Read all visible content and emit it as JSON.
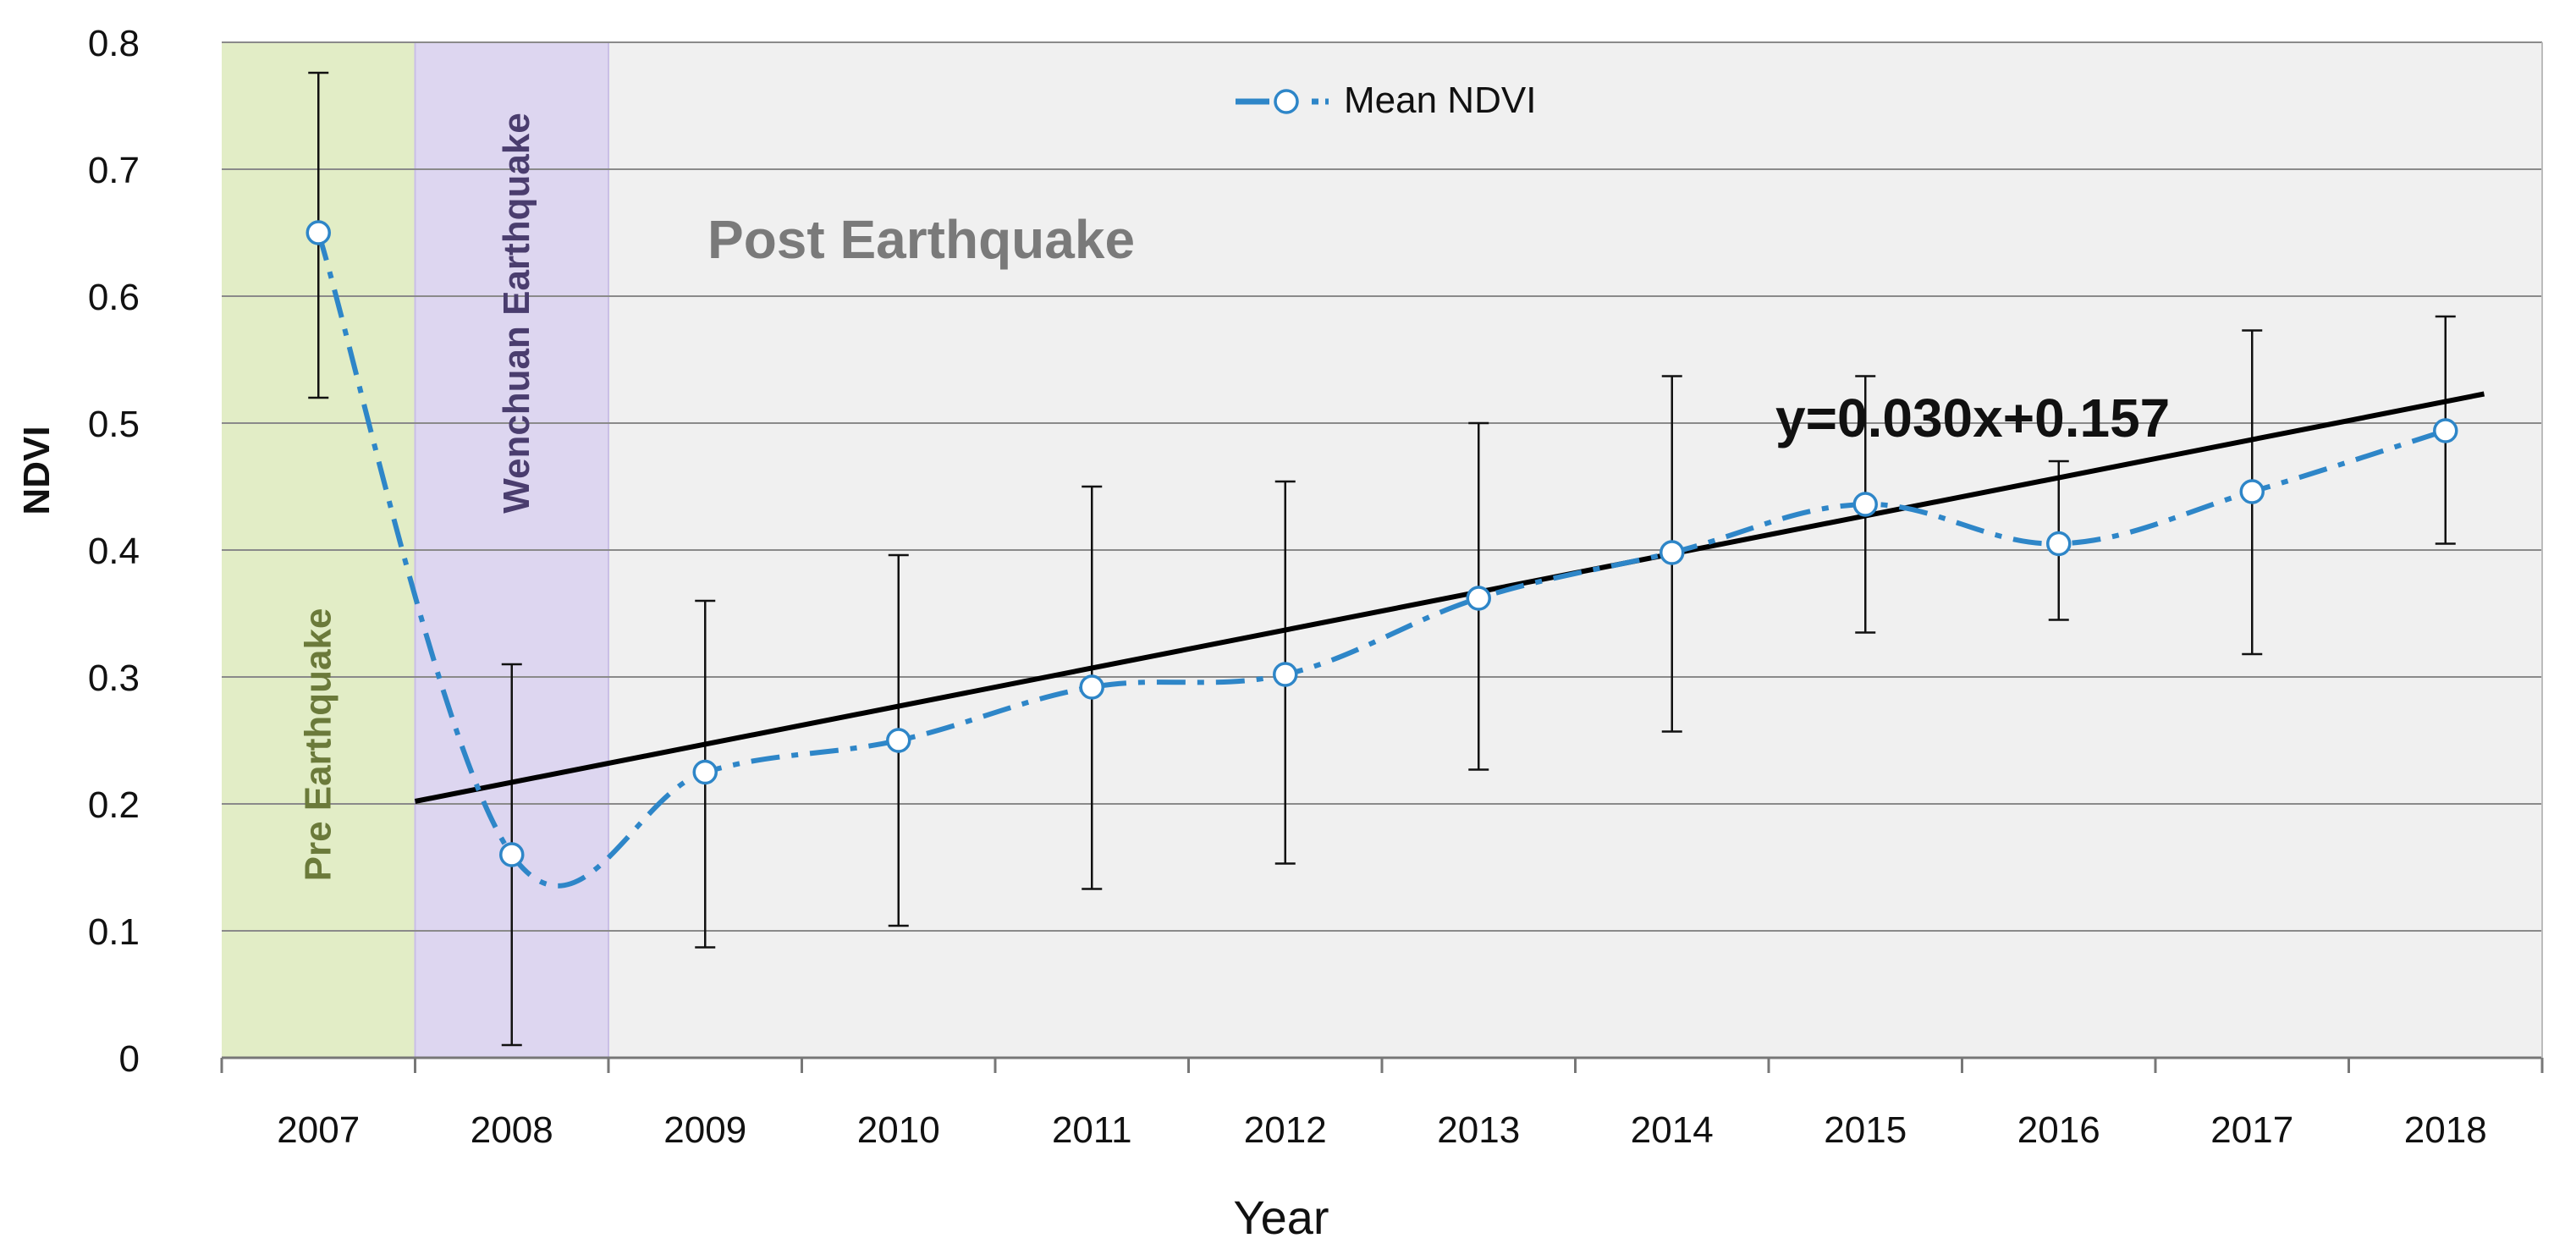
{
  "chart_data": {
    "type": "line",
    "title": "",
    "xlabel": "Year",
    "ylabel": "NDVI",
    "categories": [
      "2007",
      "2008",
      "2009",
      "2010",
      "2011",
      "2012",
      "2013",
      "2014",
      "2015",
      "2016",
      "2017",
      "2018"
    ],
    "ylim": [
      0,
      0.8
    ],
    "yticks": [
      "0",
      "0.1",
      "0.2",
      "0.3",
      "0.4",
      "0.5",
      "0.6",
      "0.7",
      "0.8"
    ],
    "grid": true,
    "legend": "top-center",
    "series": [
      {
        "name": "Mean NDVI",
        "values": [
          0.65,
          0.16,
          0.225,
          0.25,
          0.292,
          0.302,
          0.362,
          0.398,
          0.436,
          0.405,
          0.446,
          0.494
        ],
        "err_low": [
          0.52,
          0.01,
          0.087,
          0.104,
          0.133,
          0.153,
          0.227,
          0.257,
          0.335,
          0.345,
          0.318,
          0.405
        ],
        "err_high": [
          0.776,
          0.31,
          0.36,
          0.396,
          0.45,
          0.454,
          0.5,
          0.537,
          0.537,
          0.47,
          0.573,
          0.584
        ],
        "color": "#2e86c8"
      }
    ],
    "trendline": {
      "label": "y=0.030x+0.157",
      "slope": 0.03,
      "intercept": 0.157,
      "x_start": 1,
      "x_end": 12.2,
      "color": "#000000"
    },
    "regions": [
      {
        "label": "Pre Earthquake",
        "from": 0,
        "to": 1,
        "color": "#e2edc6"
      },
      {
        "label": "Wenchuan Earthquake",
        "from": 1,
        "to": 2,
        "color": "#ddd6f0"
      },
      {
        "label": "Post Earthquake",
        "from": 2,
        "to": 12,
        "color": "#f0f0f0"
      }
    ]
  }
}
